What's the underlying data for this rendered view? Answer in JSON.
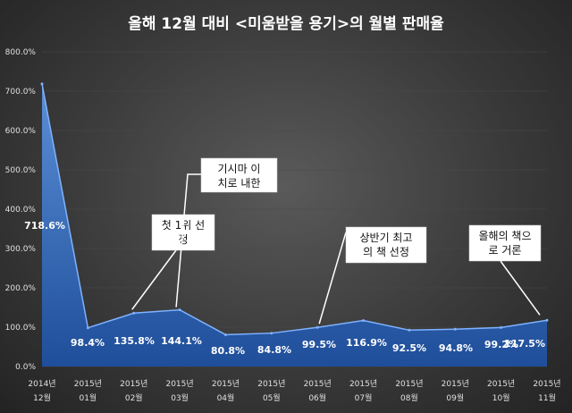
{
  "chart_data": {
    "type": "area",
    "title": "올해 12월 대비 <미움받을 용기>의 월별 판매율",
    "xlabel": "",
    "ylabel": "",
    "ylim": [
      0,
      800
    ],
    "yticks": [
      "0.0%",
      "100.0%",
      "200.0%",
      "300.0%",
      "400.0%",
      "500.0%",
      "600.0%",
      "700.0%",
      "800.0%"
    ],
    "categories": [
      [
        "2014년",
        "12월"
      ],
      [
        "2015년",
        "01월"
      ],
      [
        "2015년",
        "02월"
      ],
      [
        "2015년",
        "03월"
      ],
      [
        "2015년",
        "04월"
      ],
      [
        "2015년",
        "05월"
      ],
      [
        "2015년",
        "06월"
      ],
      [
        "2015년",
        "07월"
      ],
      [
        "2015년",
        "08월"
      ],
      [
        "2015년",
        "09월"
      ],
      [
        "2015년",
        "10월"
      ],
      [
        "2015년",
        "11월"
      ]
    ],
    "series": [
      {
        "values": [
          718.6,
          98.4,
          135.8,
          144.1,
          80.8,
          84.8,
          99.5,
          116.9,
          92.5,
          94.8,
          99.2,
          117.5
        ]
      }
    ],
    "data_labels": [
      "718.6%",
      "98.4%",
      "135.8%",
      "144.1%",
      "80.8%",
      "84.8%",
      "99.5%",
      "116.9%",
      "92.5%",
      "94.8%",
      "99.2%",
      "117.5%"
    ],
    "annotations": [
      {
        "lines": [
          "첫 1위 선",
          "정"
        ],
        "point": 2
      },
      {
        "lines": [
          "기시마 이",
          "치로 내한"
        ],
        "point": 3
      },
      {
        "lines": [
          "상반기 최고",
          "의 책 선정"
        ],
        "point": 6
      },
      {
        "lines": [
          "올해의 책으",
          "로 거론"
        ],
        "point": 11
      }
    ],
    "grid": true,
    "colors": {
      "area_top": "#5b8fd6",
      "area_bottom": "#1f4e9a",
      "edge": "#7fb2ff"
    }
  }
}
